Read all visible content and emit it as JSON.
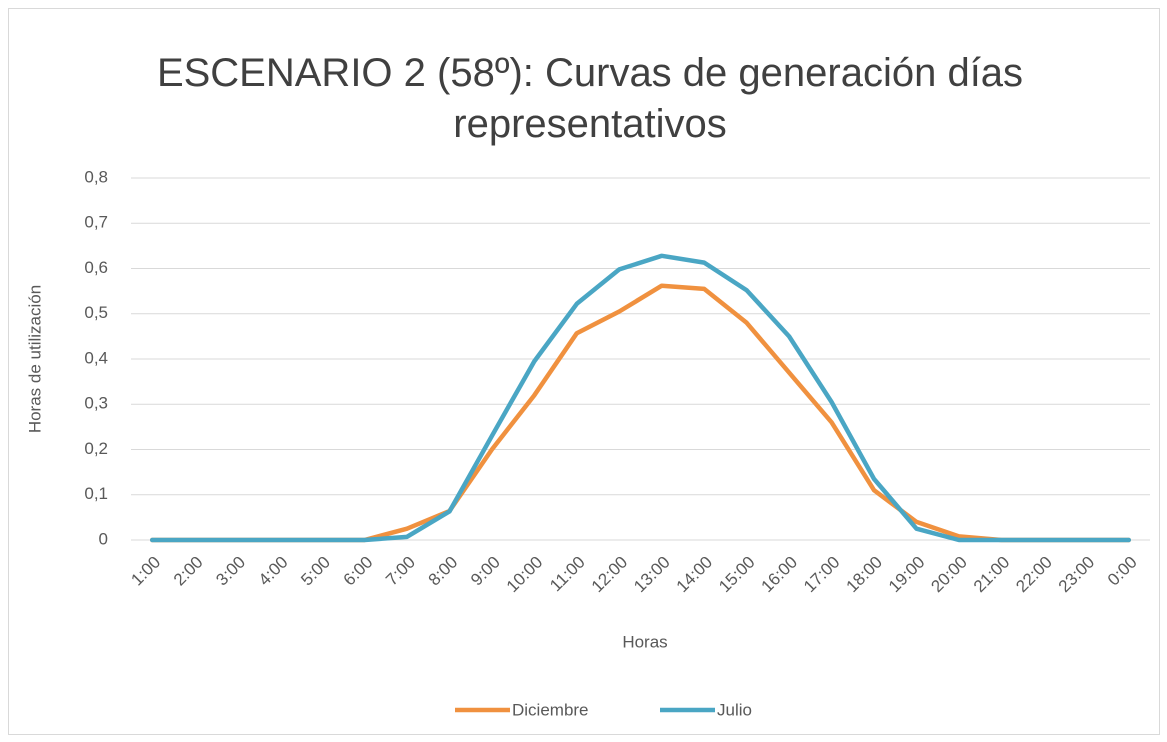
{
  "chart_data": {
    "type": "line",
    "title": "ESCENARIO 2 (58º): Curvas de generación días representativos",
    "x_label": "Horas",
    "y_label": "Horas de utilización",
    "categories": [
      "1:00",
      "2:00",
      "3:00",
      "4:00",
      "5:00",
      "6:00",
      "7:00",
      "8:00",
      "9:00",
      "10:00",
      "11:00",
      "12:00",
      "13:00",
      "14:00",
      "15:00",
      "16:00",
      "17:00",
      "18:00",
      "19:00",
      "20:00",
      "21:00",
      "22:00",
      "23:00",
      "0:00"
    ],
    "series": [
      {
        "name": "Diciembre",
        "color": "#f0913f",
        "values": [
          0,
          0,
          0,
          0,
          0,
          0,
          0.025,
          0.064,
          0.2,
          0.32,
          0.457,
          0.505,
          0.562,
          0.555,
          0.48,
          0.37,
          0.26,
          0.11,
          0.04,
          0.008,
          0,
          0,
          0,
          0
        ]
      },
      {
        "name": "Julio",
        "color": "#4aa6c4",
        "values": [
          0,
          0,
          0,
          0,
          0,
          0,
          0.007,
          0.063,
          0.23,
          0.395,
          0.522,
          0.598,
          0.628,
          0.613,
          0.552,
          0.45,
          0.305,
          0.135,
          0.025,
          0,
          0,
          0,
          0,
          0
        ]
      }
    ],
    "ylim": [
      0,
      0.8
    ],
    "yticks": [
      0,
      {
        "value": 0.1,
        "label": "0,1"
      },
      {
        "value": 0.2,
        "label": "0,2"
      },
      {
        "value": 0.3,
        "label": "0,3"
      },
      {
        "value": 0.4,
        "label": "0,4"
      },
      {
        "value": 0.5,
        "label": "0,5"
      },
      {
        "value": 0.6,
        "label": "0,6"
      },
      {
        "value": 0.7,
        "label": "0,7"
      },
      {
        "value": 0.8,
        "label": "0,8"
      }
    ],
    "grid": true,
    "legend": "bottom"
  }
}
